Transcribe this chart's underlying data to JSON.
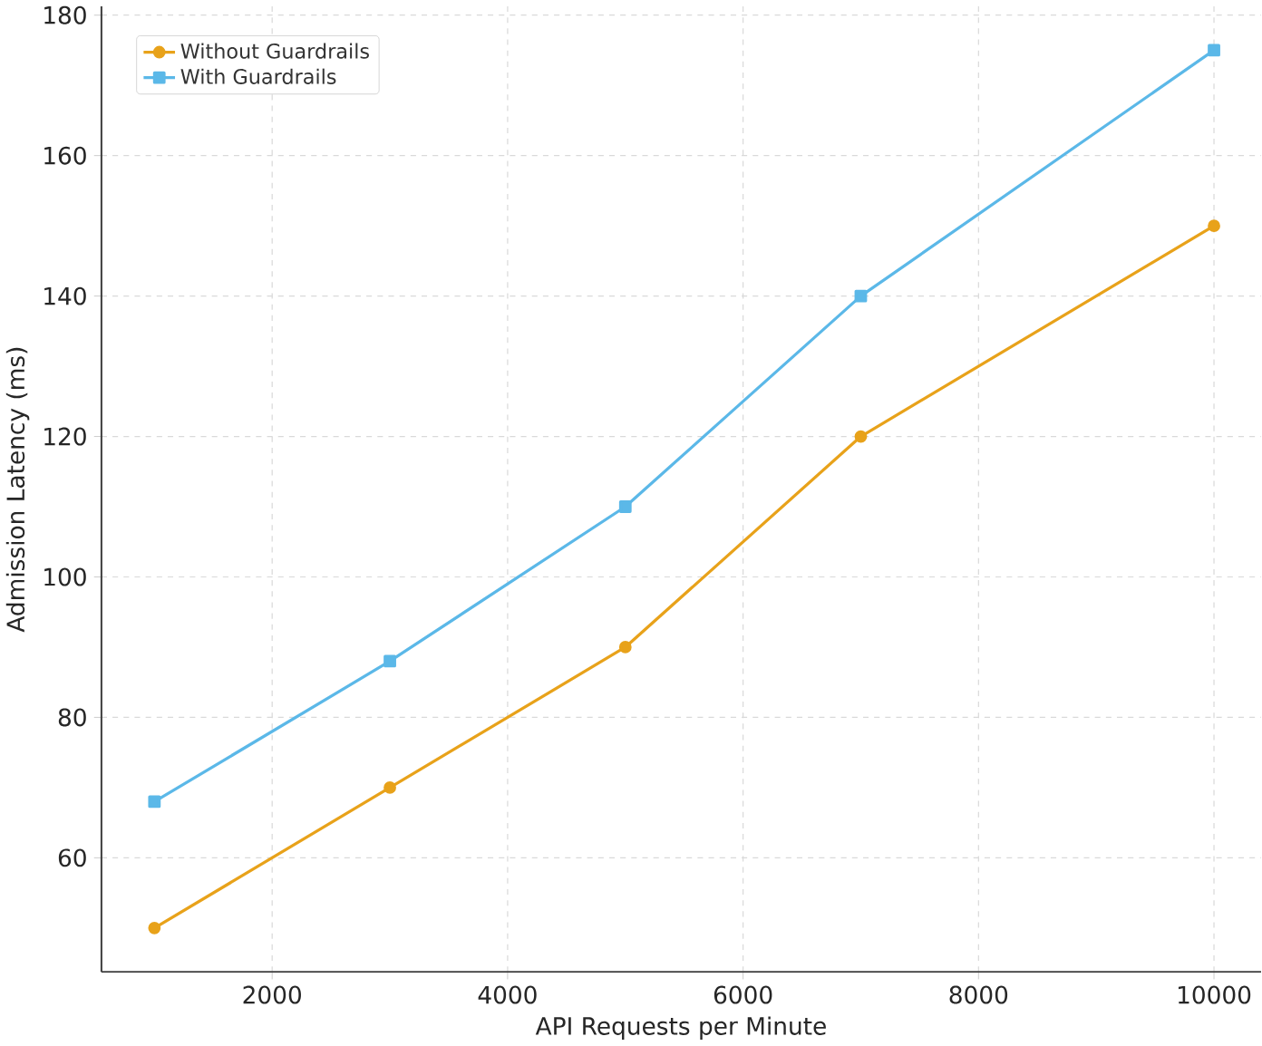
{
  "chart_data": {
    "type": "line",
    "xlabel": "API Requests per Minute",
    "ylabel": "Admission Latency (ms)",
    "xlim": [
      550,
      10400
    ],
    "ylim": [
      43.75,
      181.25
    ],
    "xticks": [
      2000,
      4000,
      6000,
      8000,
      10000
    ],
    "yticks": [
      60,
      80,
      100,
      120,
      140,
      160,
      180
    ],
    "grid": true,
    "legend": "top left",
    "line_style": "solid",
    "series": [
      {
        "name": "Without Guardrails",
        "color": "#e8a21a",
        "marker": "circle",
        "x": [
          1000,
          3000,
          5000,
          7000,
          10000
        ],
        "values": [
          50,
          70,
          90,
          120,
          150
        ]
      },
      {
        "name": "With Guardrails",
        "color": "#5bb8e8",
        "marker": "square",
        "x": [
          1000,
          3000,
          5000,
          7000,
          10000
        ],
        "values": [
          68,
          88,
          110,
          140,
          175
        ]
      }
    ]
  }
}
